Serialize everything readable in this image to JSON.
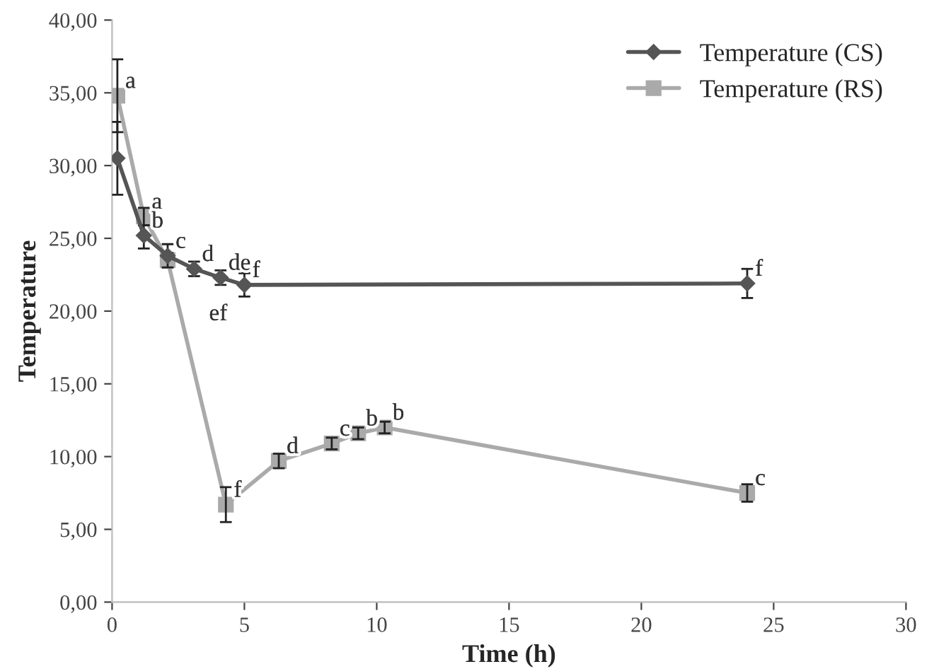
{
  "chart_data": {
    "type": "line",
    "xlabel": "Time (h)",
    "ylabel": "Temperature",
    "xlim": [
      0,
      30
    ],
    "xticks": [
      0,
      5,
      10,
      15,
      20,
      25,
      30
    ],
    "ylim": [
      0,
      40
    ],
    "yticks": [
      {
        "value": 0,
        "label": "0,00"
      },
      {
        "value": 5,
        "label": "5,00"
      },
      {
        "value": 10,
        "label": "10,00"
      },
      {
        "value": 15,
        "label": "15,00"
      },
      {
        "value": 20,
        "label": "20,00"
      },
      {
        "value": 25,
        "label": "25,00"
      },
      {
        "value": 30,
        "label": "30,00"
      },
      {
        "value": 35,
        "label": "35,00"
      },
      {
        "value": 40,
        "label": "40,00"
      }
    ],
    "grid": false,
    "legend": "top right",
    "series": [
      {
        "name": "Temperature (CS)",
        "color": "#555555",
        "marker": "diamond",
        "x": [
          0.2,
          1.2,
          2.1,
          3.1,
          4.1,
          5.0,
          24
        ],
        "values": [
          30.5,
          25.2,
          23.8,
          22.9,
          22.3,
          21.8,
          21.9
        ],
        "errors": [
          2.5,
          0.9,
          0.8,
          0.5,
          0.5,
          0.8,
          1.0
        ]
      },
      {
        "name": "Temperature (RS)",
        "color": "#aaaaaa",
        "marker": "square",
        "x": [
          0.2,
          1.2,
          2.1,
          4.3,
          6.3,
          8.3,
          9.3,
          10.3,
          24
        ],
        "values": [
          34.8,
          26.5,
          23.5,
          6.7,
          9.7,
          10.9,
          11.6,
          12.0,
          7.5
        ],
        "errors": [
          2.5,
          0.6,
          0.5,
          1.2,
          0.5,
          0.4,
          0.4,
          0.4,
          0.6
        ]
      }
    ],
    "annotations": [
      {
        "text": "a",
        "x": 0.2,
        "y": 34.8
      },
      {
        "text": "a",
        "x": 1.2,
        "y": 26.5
      },
      {
        "text": "b",
        "x": 1.2,
        "y": 25.2
      },
      {
        "text": "c",
        "x": 2.1,
        "y": 23.8
      },
      {
        "text": "d",
        "x": 3.1,
        "y": 22.9
      },
      {
        "text": "de",
        "x": 4.1,
        "y": 22.3
      },
      {
        "text": "f",
        "x": 5.0,
        "y": 21.8
      },
      {
        "text": "ef",
        "x": 5.0,
        "y": 21.8
      },
      {
        "text": "f",
        "x": 24,
        "y": 21.9
      },
      {
        "text": "f",
        "x": 4.3,
        "y": 6.7
      },
      {
        "text": "d",
        "x": 6.3,
        "y": 9.7
      },
      {
        "text": "c",
        "x": 8.3,
        "y": 10.9
      },
      {
        "text": "b",
        "x": 9.3,
        "y": 11.6
      },
      {
        "text": "b",
        "x": 10.3,
        "y": 12.0
      },
      {
        "text": "c",
        "x": 24,
        "y": 7.5
      }
    ]
  }
}
